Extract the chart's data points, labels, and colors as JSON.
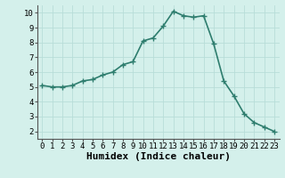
{
  "x": [
    0,
    1,
    2,
    3,
    4,
    5,
    6,
    7,
    8,
    9,
    10,
    11,
    12,
    13,
    14,
    15,
    16,
    17,
    18,
    19,
    20,
    21,
    22,
    23
  ],
  "y": [
    5.1,
    5.0,
    5.0,
    5.1,
    5.4,
    5.5,
    5.8,
    6.0,
    6.5,
    6.7,
    8.1,
    8.3,
    9.1,
    10.1,
    9.8,
    9.7,
    9.8,
    7.9,
    5.4,
    4.4,
    3.2,
    2.6,
    2.3,
    2.0
  ],
  "xlabel": "Humidex (Indice chaleur)",
  "xlim": [
    -0.5,
    23.5
  ],
  "ylim": [
    1.5,
    10.5
  ],
  "yticks": [
    2,
    3,
    4,
    5,
    6,
    7,
    8,
    9,
    10
  ],
  "xticks": [
    0,
    1,
    2,
    3,
    4,
    5,
    6,
    7,
    8,
    9,
    10,
    11,
    12,
    13,
    14,
    15,
    16,
    17,
    18,
    19,
    20,
    21,
    22,
    23
  ],
  "line_color": "#2e7d6e",
  "marker": "+",
  "marker_size": 4,
  "bg_color": "#d4f0eb",
  "grid_color": "#b8ddd8",
  "xlabel_fontsize": 8,
  "tick_fontsize": 6.5,
  "linewidth": 1.2
}
